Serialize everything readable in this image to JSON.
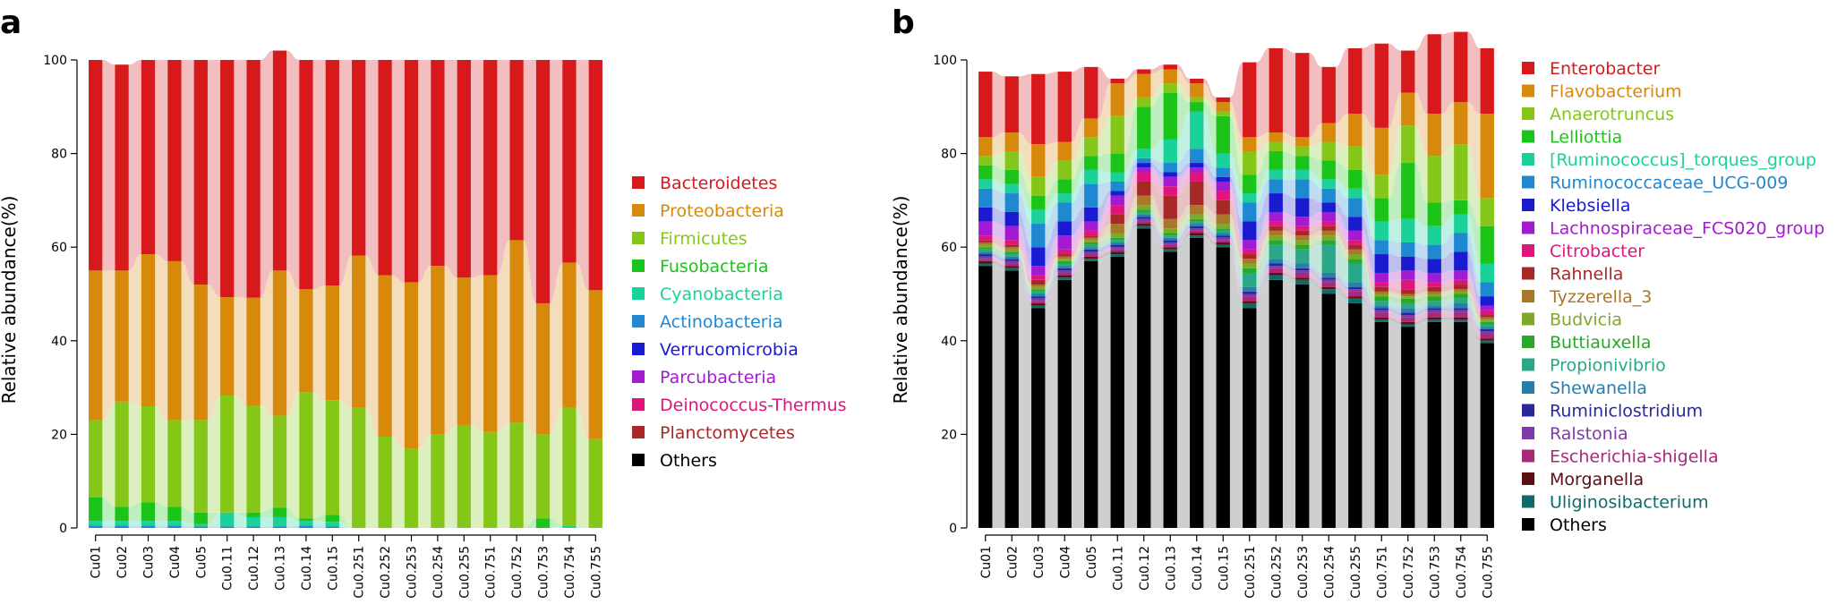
{
  "panels": [
    {
      "panel_label": "a",
      "ylabel": "Relative abundance(%)",
      "legend": [
        {
          "name": "Bacteroidetes",
          "color": "#d7191c",
          "text_color": "#d7191c"
        },
        {
          "name": "Proteobacteria",
          "color": "#d6890b",
          "text_color": "#d6890b"
        },
        {
          "name": "Firmicutes",
          "color": "#84c719",
          "text_color": "#84c719"
        },
        {
          "name": "Fusobacteria",
          "color": "#1ac419",
          "text_color": "#1ac419"
        },
        {
          "name": "Cyanobacteria",
          "color": "#1ad19a",
          "text_color": "#1ad19a"
        },
        {
          "name": "Actinobacteria",
          "color": "#1e88d0",
          "text_color": "#1e88d0"
        },
        {
          "name": "Verrucomicrobia",
          "color": "#1a1ad0",
          "text_color": "#1a1ad0"
        },
        {
          "name": "Parcubacteria",
          "color": "#a31ad0",
          "text_color": "#a31ad0"
        },
        {
          "name": "Deinococcus-Thermus",
          "color": "#e0157c",
          "text_color": "#e0157c"
        },
        {
          "name": "Planctomycetes",
          "color": "#a82828",
          "text_color": "#a82828"
        },
        {
          "name": "Others",
          "color": "#000000",
          "text_color": "#000000"
        }
      ]
    },
    {
      "panel_label": "b",
      "ylabel": "Relative abundance(%)",
      "legend": [
        {
          "name": "Enterobacter",
          "color": "#d7191c",
          "text_color": "#d7191c"
        },
        {
          "name": "Flavobacterium",
          "color": "#d6890b",
          "text_color": "#d6890b"
        },
        {
          "name": "Anaerotruncus",
          "color": "#84c719",
          "text_color": "#84c719"
        },
        {
          "name": "Lelliottia",
          "color": "#1ac419",
          "text_color": "#1ac419"
        },
        {
          "name": "[Ruminococcus]_torques_group",
          "color": "#1ad19a",
          "text_color": "#1ad19a"
        },
        {
          "name": "Ruminococcaceae_UCG-009",
          "color": "#1e88d0",
          "text_color": "#1e88d0"
        },
        {
          "name": "Klebsiella",
          "color": "#1a1ad0",
          "text_color": "#1a1ad0"
        },
        {
          "name": "Lachnospiraceae_FCS020_group",
          "color": "#a31ad0",
          "text_color": "#a31ad0"
        },
        {
          "name": "Citrobacter",
          "color": "#e0157c",
          "text_color": "#e0157c"
        },
        {
          "name": "Rahnella",
          "color": "#a82828",
          "text_color": "#a82828"
        },
        {
          "name": "Tyzzerella_3",
          "color": "#a8782a",
          "text_color": "#a8782a"
        },
        {
          "name": "Budvicia",
          "color": "#7ea828",
          "text_color": "#7ea828"
        },
        {
          "name": "Buttiauxella",
          "color": "#28a828",
          "text_color": "#28a828"
        },
        {
          "name": "Propionivibrio",
          "color": "#28a886",
          "text_color": "#28a886"
        },
        {
          "name": "Shewanella",
          "color": "#287ea8",
          "text_color": "#287ea8"
        },
        {
          "name": "Ruminiclostridium",
          "color": "#28289c",
          "text_color": "#28289c"
        },
        {
          "name": "Ralstonia",
          "color": "#7e3aa8",
          "text_color": "#7e3aa8"
        },
        {
          "name": "Escherichia-shigella",
          "color": "#a8287a",
          "text_color": "#a8287a"
        },
        {
          "name": "Morganella",
          "color": "#5a1010",
          "text_color": "#5a1010"
        },
        {
          "name": "Uliginosibacterium",
          "color": "#106a6a",
          "text_color": "#106a6a"
        },
        {
          "name": "Others",
          "color": "#000000",
          "text_color": "#000000"
        }
      ]
    }
  ],
  "chart_data": [
    {
      "type": "bar",
      "subtype": "stacked-percent",
      "title": "a",
      "xlabel": "",
      "ylabel": "Relative abundance(%)",
      "ylim": [
        0,
        100
      ],
      "yticks": [
        0,
        20,
        40,
        60,
        80,
        100
      ],
      "categories": [
        "Cu01",
        "Cu02",
        "Cu03",
        "Cu04",
        "Cu05",
        "Cu0.11",
        "Cu0.12",
        "Cu0.13",
        "Cu0.14",
        "Cu0.15",
        "Cu0.251",
        "Cu0.252",
        "Cu0.253",
        "Cu0.254",
        "Cu0.255",
        "Cu0.751",
        "Cu0.752",
        "Cu0.753",
        "Cu0.754",
        "Cu0.755"
      ],
      "series": [
        {
          "name": "Others",
          "values": [
            0,
            0,
            0,
            0,
            0,
            0,
            0,
            0,
            0,
            0,
            0,
            0,
            0,
            0,
            0,
            0,
            0,
            0,
            0,
            0
          ]
        },
        {
          "name": "Planctomycetes",
          "values": [
            0,
            0,
            0,
            0,
            0,
            0,
            0,
            0,
            0,
            0,
            0,
            0,
            0,
            0,
            0,
            0,
            0,
            0,
            0,
            0
          ]
        },
        {
          "name": "Deinococcus-Thermus",
          "values": [
            0,
            0,
            0,
            0,
            0,
            0,
            0,
            0,
            0,
            0,
            0,
            0,
            0,
            0,
            0,
            0,
            0,
            0,
            0,
            0
          ]
        },
        {
          "name": "Parcubacteria",
          "values": [
            0,
            0,
            0,
            0,
            0,
            0,
            0,
            0,
            0,
            0,
            0,
            0,
            0,
            0,
            0,
            0,
            0,
            0,
            0,
            0
          ]
        },
        {
          "name": "Verrucomicrobia",
          "values": [
            0,
            0,
            0,
            0,
            0,
            0,
            0,
            0,
            0,
            0,
            0,
            0,
            0,
            0,
            0,
            0,
            0,
            0,
            0,
            0
          ]
        },
        {
          "name": "Actinobacteria",
          "values": [
            0.5,
            0.5,
            0.5,
            0.5,
            0.3,
            0.3,
            0.3,
            0.3,
            0.5,
            0.3,
            0,
            0,
            0,
            0,
            0,
            0,
            0,
            0,
            0,
            0
          ]
        },
        {
          "name": "Cyanobacteria",
          "values": [
            1,
            1,
            1,
            1,
            0.5,
            3,
            2,
            2,
            1,
            1,
            0,
            0,
            0,
            0,
            0,
            0,
            0,
            0,
            0.5,
            0
          ]
        },
        {
          "name": "Fusobacteria",
          "values": [
            5,
            3,
            4,
            3,
            2.5,
            0,
            1,
            2,
            0.5,
            1.5,
            0,
            0,
            0,
            0,
            0,
            0,
            0,
            2,
            0,
            0
          ]
        },
        {
          "name": "Firmicutes",
          "values": [
            16.5,
            22.5,
            20.5,
            18.5,
            19.7,
            25,
            22.9,
            19.7,
            27,
            24.5,
            25.7,
            19.5,
            17,
            20,
            22,
            20.5,
            22.5,
            18,
            25.2,
            19
          ]
        },
        {
          "name": "Proteobacteria",
          "values": [
            32,
            28,
            32.5,
            34,
            29,
            21,
            23,
            31,
            22,
            24.5,
            32.5,
            34.5,
            35.5,
            36,
            31.5,
            33.5,
            39,
            28,
            31,
            31.8
          ]
        },
        {
          "name": "Bacteroidetes",
          "values": [
            45,
            44,
            41.5,
            43,
            48,
            50.7,
            50.8,
            47,
            49,
            48.2,
            41.8,
            46,
            47.5,
            44,
            46.5,
            46,
            38.5,
            52,
            43.3,
            49.2
          ]
        }
      ]
    },
    {
      "type": "bar",
      "subtype": "stacked-percent",
      "title": "b",
      "xlabel": "",
      "ylabel": "Relative abundance(%)",
      "ylim": [
        0,
        100
      ],
      "yticks": [
        0,
        20,
        40,
        60,
        80,
        100
      ],
      "categories": [
        "Cu01",
        "Cu02",
        "Cu03",
        "Cu04",
        "Cu05",
        "Cu0.11",
        "Cu0.12",
        "Cu0.13",
        "Cu0.14",
        "Cu0.15",
        "Cu0.251",
        "Cu0.252",
        "Cu0.253",
        "Cu0.254",
        "Cu0.255",
        "Cu0.751",
        "Cu0.752",
        "Cu0.753",
        "Cu0.754",
        "Cu0.755"
      ],
      "series": [
        {
          "name": "Others",
          "values": [
            56,
            55,
            47,
            53,
            57,
            58,
            64,
            59,
            62,
            60,
            47,
            53,
            52,
            50,
            48,
            44,
            43,
            44,
            44,
            39.5
          ]
        },
        {
          "name": "Uliginosibacterium",
          "values": [
            0.5,
            0.5,
            0.5,
            0.5,
            0.5,
            0.5,
            0.5,
            0.5,
            0.5,
            0.5,
            1,
            1,
            1,
            1,
            1,
            0.5,
            0.5,
            0.5,
            0.5,
            0.5
          ]
        },
        {
          "name": "Morganella",
          "values": [
            0.5,
            0.5,
            0.5,
            0.5,
            0.5,
            0.5,
            0.5,
            0.5,
            0.5,
            0.5,
            0.5,
            0.5,
            0.5,
            0.5,
            0.5,
            0.5,
            0.5,
            0.5,
            0.5,
            0.5
          ]
        },
        {
          "name": "Escherichia-shigella",
          "values": [
            0.5,
            0.5,
            0.5,
            0.5,
            0.5,
            0.5,
            0.5,
            0.5,
            0.5,
            0.5,
            1,
            1,
            1,
            1,
            1,
            1,
            1,
            1,
            1,
            1
          ]
        },
        {
          "name": "Ralstonia",
          "values": [
            0.5,
            0.5,
            0.5,
            0.5,
            0.5,
            0.5,
            0.5,
            0.5,
            0.5,
            0.5,
            0.5,
            0.5,
            0.5,
            0.5,
            0.5,
            0.5,
            0.5,
            0.5,
            0.5,
            0.5
          ]
        },
        {
          "name": "Ruminiclostridium",
          "values": [
            0.5,
            0.5,
            0.5,
            0.5,
            0.5,
            0.5,
            0.5,
            0.5,
            0.5,
            0.5,
            0.5,
            0.5,
            0.5,
            0.5,
            0.5,
            0.5,
            0.5,
            0.5,
            0.5,
            0.5
          ]
        },
        {
          "name": "Shewanella",
          "values": [
            0.5,
            0.5,
            0.5,
            0.5,
            0.5,
            0.5,
            0.5,
            0.5,
            0.5,
            0.5,
            1,
            1,
            1,
            1,
            1,
            0.5,
            1,
            0.5,
            1,
            0.5
          ]
        },
        {
          "name": "Propionivibrio",
          "values": [
            0.5,
            0.5,
            0.5,
            0.5,
            0.5,
            0.5,
            0.5,
            0.5,
            0.5,
            0.5,
            3,
            3,
            3,
            6,
            4,
            1,
            1,
            1,
            1,
            0.5
          ]
        },
        {
          "name": "Buttiauxella",
          "values": [
            0.5,
            0.5,
            0.5,
            0.5,
            0.5,
            0.5,
            0.5,
            0.5,
            0.5,
            0.5,
            1,
            1,
            1,
            1,
            1,
            1,
            1,
            1,
            1,
            0.5
          ]
        },
        {
          "name": "Budvicia",
          "values": [
            0.5,
            0.5,
            0.5,
            0.5,
            0.5,
            1,
            1,
            1,
            1,
            1,
            1,
            1,
            1,
            1,
            1,
            0.5,
            0.5,
            0.5,
            0.5,
            0.5
          ]
        },
        {
          "name": "Tyzzerella_3",
          "values": [
            0.5,
            0.5,
            0.5,
            0.5,
            0.5,
            2,
            2,
            2,
            2,
            2,
            1,
            1,
            1,
            1,
            1,
            0.5,
            0.5,
            0.5,
            0.5,
            0.5
          ]
        },
        {
          "name": "Rahnella",
          "values": [
            0.5,
            0.5,
            1,
            0.5,
            0.5,
            2,
            3,
            5,
            5,
            3,
            1,
            1,
            1,
            1,
            1,
            1,
            1,
            1,
            1,
            0.5
          ]
        },
        {
          "name": "Citrobacter",
          "values": [
            1,
            1,
            1,
            1,
            1,
            2,
            2,
            2,
            2,
            2,
            1,
            1,
            1,
            1,
            1,
            1,
            2,
            1,
            1,
            1
          ]
        },
        {
          "name": "Lachnospiraceae_FCS020_group",
          "values": [
            3,
            3,
            2,
            3,
            2,
            2,
            1,
            2,
            1,
            2,
            2,
            2,
            2,
            2,
            2,
            2,
            2,
            2,
            2,
            1
          ]
        },
        {
          "name": "Klebsiella",
          "values": [
            3,
            3,
            4,
            3,
            3,
            1,
            1,
            1,
            1,
            1,
            4,
            4,
            4,
            2,
            3,
            4,
            3,
            3,
            4,
            2
          ]
        },
        {
          "name": "Ruminococcaceae_UCG-009",
          "values": [
            4,
            4,
            5,
            4,
            5,
            2,
            1,
            2,
            3,
            2,
            4,
            3,
            4,
            3,
            4,
            3,
            3,
            3,
            4,
            3
          ]
        },
        {
          "name": "[Ruminococcus]_torques_group",
          "values": [
            2,
            2,
            3,
            2,
            3,
            2,
            2,
            5,
            8,
            3,
            2,
            2,
            2,
            2,
            2,
            4,
            5,
            4,
            4,
            4
          ]
        },
        {
          "name": "Lelliottia",
          "values": [
            3,
            3,
            3,
            3,
            3,
            4,
            9,
            10,
            2,
            8,
            4,
            4,
            3,
            4,
            4,
            5,
            12,
            5,
            3,
            8
          ]
        },
        {
          "name": "Anaerotruncus",
          "values": [
            2,
            4,
            4,
            4,
            4,
            8,
            2,
            2,
            1,
            1,
            5,
            2,
            2,
            4,
            5,
            5,
            8,
            10,
            12,
            6
          ]
        },
        {
          "name": "Flavobacterium",
          "values": [
            4,
            4,
            7,
            4,
            4,
            7,
            5,
            3,
            3,
            2,
            3,
            2,
            2,
            4,
            7,
            10,
            7,
            9,
            9,
            18
          ]
        },
        {
          "name": "Enterobacter",
          "values": [
            14,
            12,
            15,
            15,
            11,
            1,
            1,
            1,
            1,
            1,
            16,
            18,
            18,
            12,
            14,
            18,
            9,
            17,
            15,
            14
          ]
        }
      ]
    }
  ]
}
